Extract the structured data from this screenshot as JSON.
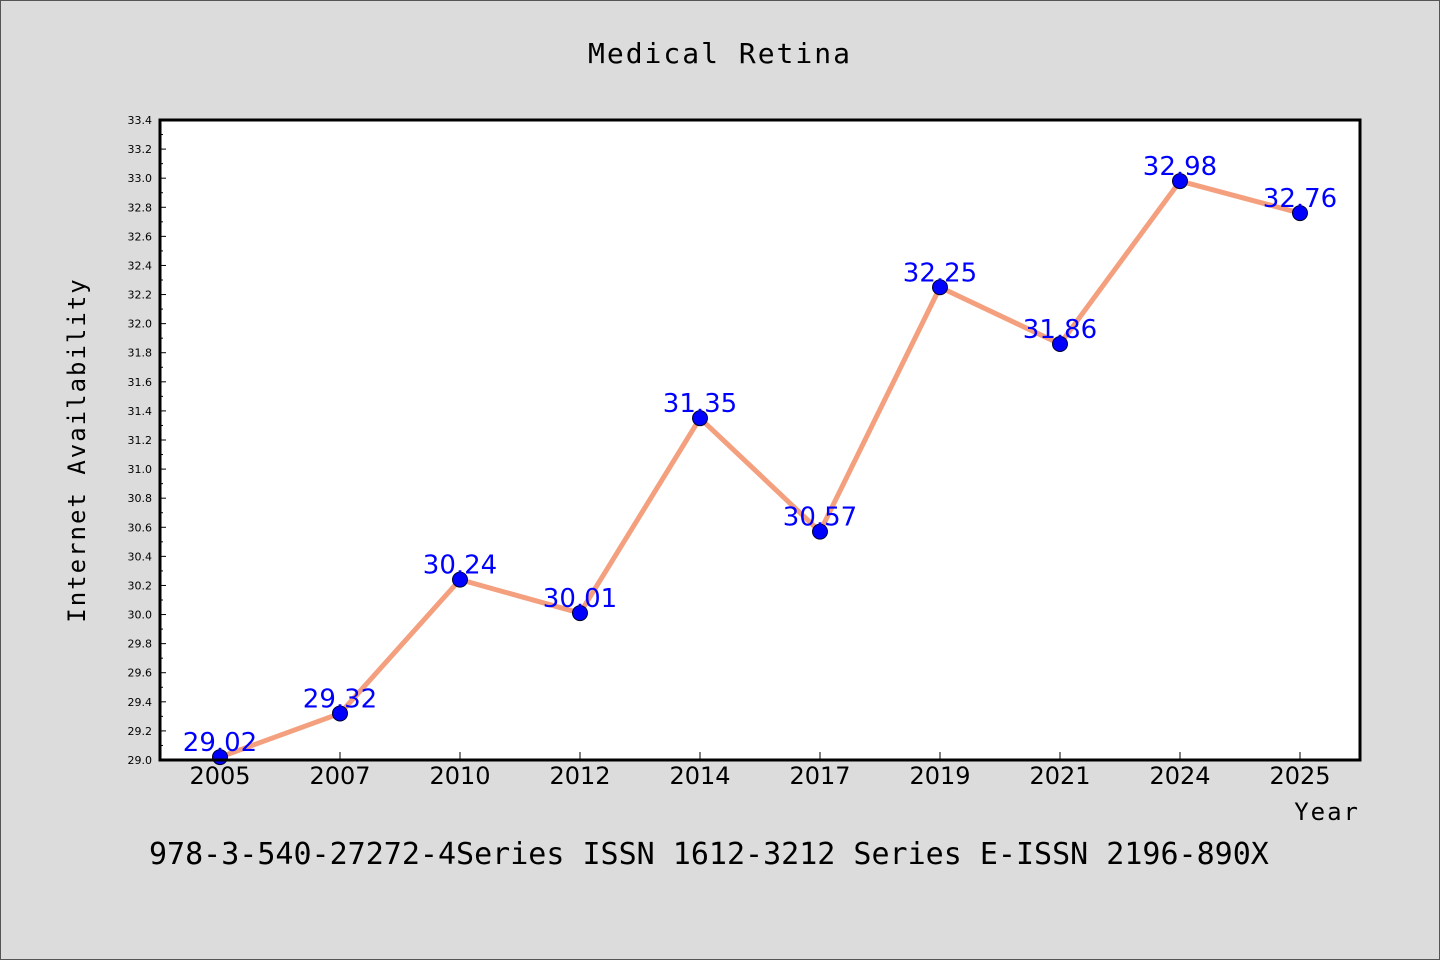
{
  "chart_data": {
    "type": "line",
    "title": "Medical Retina",
    "xlabel": "Year",
    "ylabel": "Internet Availability",
    "categories": [
      "2005",
      "2007",
      "2010",
      "2012",
      "2014",
      "2017",
      "2019",
      "2021",
      "2024",
      "2025"
    ],
    "values": [
      29.02,
      29.32,
      30.24,
      30.01,
      31.35,
      30.57,
      32.25,
      31.86,
      32.98,
      32.76
    ],
    "data_labels": [
      "29.02",
      "29.32",
      "30.24",
      "30.01",
      "31.35",
      "30.57",
      "32.25",
      "31.86",
      "32.98",
      "32.76"
    ],
    "ylim": [
      29.0,
      33.4
    ],
    "yticks": [
      "29.0",
      "29.2",
      "29.4",
      "29.6",
      "29.8",
      "30.0",
      "30.2",
      "30.4",
      "30.6",
      "30.8",
      "31.0",
      "31.2",
      "31.4",
      "31.6",
      "31.8",
      "32.0",
      "32.2",
      "32.4",
      "32.6",
      "32.8",
      "33.0",
      "33.2",
      "33.4"
    ],
    "grid": false,
    "legend": "none",
    "colors": {
      "line": "#f4a07e",
      "marker": "#0000ff",
      "label": "#0000ff"
    }
  },
  "footer": {
    "text": "978-3-540-27272-4Series ISSN 1612-3212 Series E-ISSN 2196-890X"
  }
}
